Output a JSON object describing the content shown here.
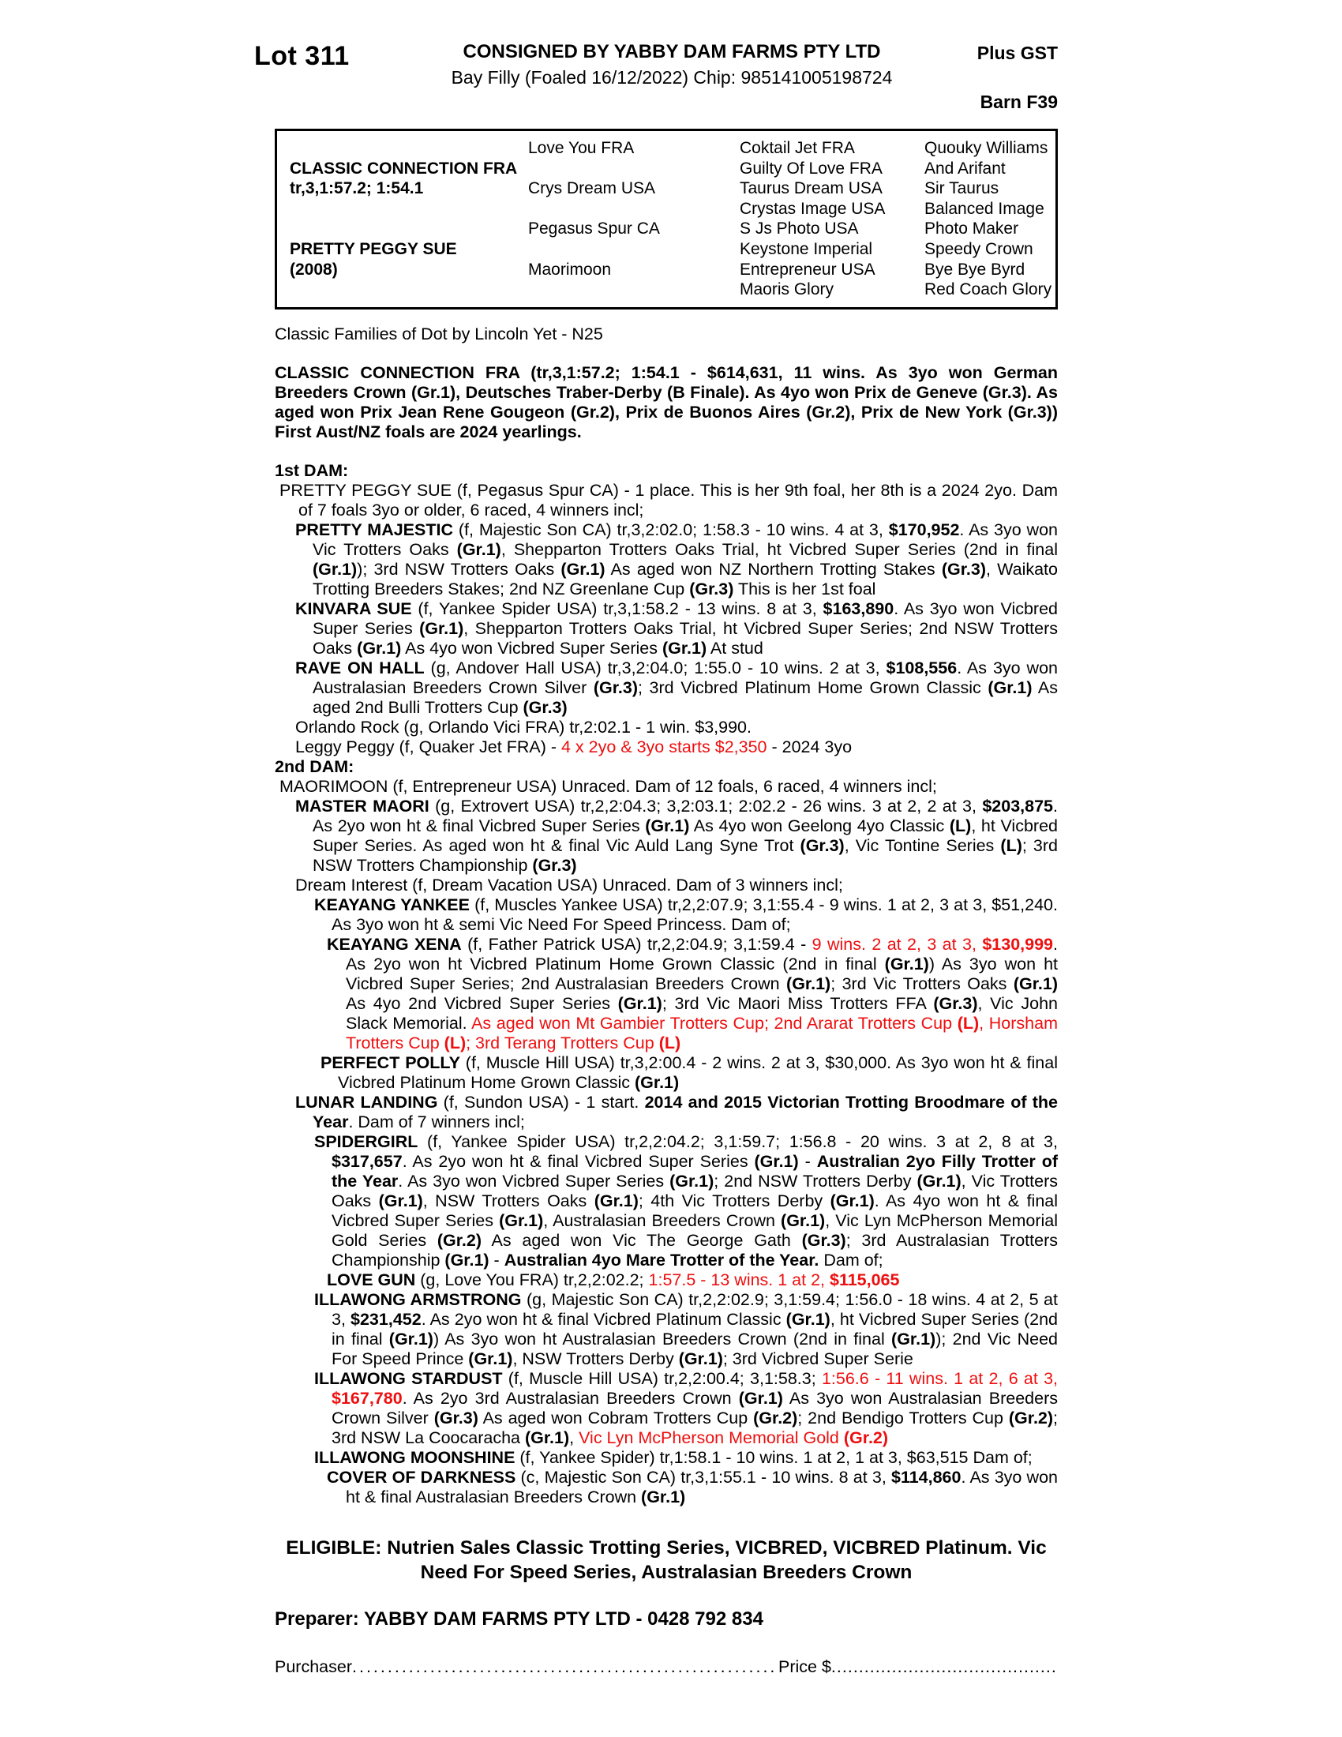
{
  "header": {
    "lot": "Lot 311",
    "consigned": "CONSIGNED BY YABBY DAM FARMS PTY LTD",
    "plus_gst": "Plus GST",
    "bay_filly": "Bay Filly (Foaled 16/12/2022) Chip: 985141005198724",
    "barn": "Barn F39"
  },
  "pedigree": {
    "col1": [
      "",
      "CLASSIC CONNECTION FRA",
      "tr,3,1:57.2; 1:54.1",
      "",
      "",
      "PRETTY PEGGY SUE",
      "(2008)",
      ""
    ],
    "col2": [
      "Love You FRA",
      "",
      "Crys Dream USA",
      "",
      "Pegasus Spur CA",
      "",
      "Maorimoon",
      ""
    ],
    "col3": [
      "Coktail Jet FRA",
      "Guilty Of Love FRA",
      "Taurus Dream USA",
      "Crystas Image USA",
      "S Js Photo USA",
      "Keystone Imperial",
      "Entrepreneur USA",
      "Maoris Glory"
    ],
    "col4": [
      "Quouky Williams",
      "And Arifant",
      "Sir Taurus",
      "Balanced Image",
      "Photo Maker",
      "Speedy Crown",
      "Bye Bye Byrd",
      "Red Coach Glory"
    ]
  },
  "family_line": "Classic Families of Dot by Lincoln Yet - N25",
  "paragraphs": [
    {
      "style": "sire",
      "gap": true,
      "segments": [
        {
          "t": "CLASSIC CONNECTION FRA (tr,3,1:57.2; 1:54.1 - $614,631, 11 wins. As 3yo won German Breeders Crown (Gr.1), Deutsches Traber-Derby (B Finale). As 4yo won Prix de Geneve (Gr.3). As aged won Prix Jean Rene Gougeon (Gr.2), Prix de Buonos Aires (Gr.2), Prix de New York (Gr.3)) First Aust/NZ foals are 2024 yearlings.",
          "b": true
        }
      ]
    },
    {
      "style": "hd",
      "gap": true,
      "segments": [
        {
          "t": "1st DAM:",
          "b": true
        }
      ]
    },
    {
      "style": "dam",
      "segments": [
        {
          "t": "PRETTY PEGGY SUE (f, Pegasus Spur CA) - 1 place. This is her 9th foal, her 8th is a 2024 2yo. Dam of 7 foals 3yo or older, 6 raced, 4 winners incl;"
        }
      ]
    },
    {
      "style": "l1",
      "segments": [
        {
          "t": "PRETTY MAJESTIC",
          "b": true
        },
        {
          "t": " (f, Majestic Son CA) tr,3,2:02.0; 1:58.3 - 10 wins. 4 at 3, "
        },
        {
          "t": "$170,952",
          "b": true
        },
        {
          "t": ". As 3yo won Vic Trotters Oaks "
        },
        {
          "t": "(Gr.1)",
          "b": true
        },
        {
          "t": ", Shepparton Trotters Oaks Trial, ht Vicbred Super Series (2nd in final "
        },
        {
          "t": "(Gr.1)",
          "b": true
        },
        {
          "t": "); 3rd NSW Trotters Oaks "
        },
        {
          "t": "(Gr.1)",
          "b": true
        },
        {
          "t": " As aged won NZ Northern Trotting Stakes "
        },
        {
          "t": "(Gr.3)",
          "b": true
        },
        {
          "t": ", Waikato Trotting Breeders Stakes; 2nd NZ Greenlane Cup "
        },
        {
          "t": "(Gr.3)",
          "b": true
        },
        {
          "t": " This is her 1st foal"
        }
      ]
    },
    {
      "style": "l1",
      "segments": [
        {
          "t": "KINVARA SUE",
          "b": true
        },
        {
          "t": " (f, Yankee Spider USA) tr,3,1:58.2 - 13 wins. 8 at 3, "
        },
        {
          "t": "$163,890",
          "b": true
        },
        {
          "t": ". As 3yo won Vicbred Super Series "
        },
        {
          "t": "(Gr.1)",
          "b": true
        },
        {
          "t": ", Shepparton Trotters Oaks Trial, ht Vicbred Super Series; 2nd NSW Trotters Oaks "
        },
        {
          "t": "(Gr.1)",
          "b": true
        },
        {
          "t": " As 4yo won Vicbred Super Series "
        },
        {
          "t": "(Gr.1)",
          "b": true
        },
        {
          "t": " At stud"
        }
      ]
    },
    {
      "style": "l1",
      "segments": [
        {
          "t": "RAVE ON HALL",
          "b": true
        },
        {
          "t": " (g, Andover Hall USA) tr,3,2:04.0; 1:55.0 - 10 wins. 2 at 3, "
        },
        {
          "t": "$108,556",
          "b": true
        },
        {
          "t": ". As 3yo won Australasian Breeders Crown Silver "
        },
        {
          "t": "(Gr.3)",
          "b": true
        },
        {
          "t": "; 3rd Vicbred Platinum Home Grown Classic "
        },
        {
          "t": "(Gr.1)",
          "b": true
        },
        {
          "t": " As aged 2nd Bulli Trotters Cup "
        },
        {
          "t": "(Gr.3)",
          "b": true
        }
      ]
    },
    {
      "style": "l1",
      "segments": [
        {
          "t": "Orlando Rock (g, Orlando Vici FRA) tr,2:02.1 - 1 win. $3,990."
        }
      ]
    },
    {
      "style": "l1",
      "segments": [
        {
          "t": "Leggy Peggy (f, Quaker Jet FRA) - "
        },
        {
          "t": "4 x 2yo & 3yo starts $2,350",
          "r": true
        },
        {
          "t": " - 2024 3yo"
        }
      ]
    },
    {
      "style": "hd",
      "segments": [
        {
          "t": "2nd DAM:",
          "b": true
        }
      ]
    },
    {
      "style": "dam",
      "segments": [
        {
          "t": "MAORIMOON (f, Entrepreneur USA) Unraced. Dam of 12 foals, 6 raced, 4 winners incl;"
        }
      ]
    },
    {
      "style": "l1",
      "segments": [
        {
          "t": "MASTER MAORI",
          "b": true
        },
        {
          "t": " (g, Extrovert USA) tr,2,2:04.3; 3,2:03.1; 2:02.2 - 26 wins. 3 at 2, 2 at 3, "
        },
        {
          "t": "$203,875",
          "b": true
        },
        {
          "t": ". As 2yo won ht & final Vicbred Super Series "
        },
        {
          "t": "(Gr.1)",
          "b": true
        },
        {
          "t": " As 4yo won Geelong 4yo Classic "
        },
        {
          "t": "(L)",
          "b": true
        },
        {
          "t": ", ht Vicbred Super Series. As aged won ht & final Vic Auld Lang Syne Trot "
        },
        {
          "t": "(Gr.3)",
          "b": true
        },
        {
          "t": ", Vic Tontine Series "
        },
        {
          "t": "(L)",
          "b": true
        },
        {
          "t": "; 3rd NSW Trotters Championship "
        },
        {
          "t": "(Gr.3)",
          "b": true
        }
      ]
    },
    {
      "style": "l1",
      "segments": [
        {
          "t": "Dream Interest (f, Dream Vacation USA) Unraced. Dam of 3 winners incl;"
        }
      ]
    },
    {
      "style": "l2",
      "segments": [
        {
          "t": "KEAYANG YANKEE",
          "b": true
        },
        {
          "t": " (f, Muscles Yankee USA) tr,2,2:07.9; 3,1:55.4 - 9 wins. 1 at 2, 3 at 3, $51,240. As 3yo won ht & semi Vic Need For Speed Princess. Dam of;"
        }
      ]
    },
    {
      "style": "l3",
      "segments": [
        {
          "t": "KEAYANG XENA",
          "b": true
        },
        {
          "t": " (f, Father Patrick USA) tr,2,2:04.9; 3,1:59.4 - "
        },
        {
          "t": "9 wins. 2 at 2, 3 at 3, ",
          "r": true
        },
        {
          "t": "$130,999",
          "r": true,
          "b": true
        },
        {
          "t": ". As 2yo won ht Vicbred Platinum Home Grown Classic (2nd in final "
        },
        {
          "t": "(Gr.1)",
          "b": true
        },
        {
          "t": ") As 3yo won ht Vicbred Super Series; 2nd Australasian Breeders Crown "
        },
        {
          "t": "(Gr.1)",
          "b": true
        },
        {
          "t": "; 3rd Vic Trotters Oaks "
        },
        {
          "t": "(Gr.1)",
          "b": true
        },
        {
          "t": " As 4yo 2nd Vicbred Super Series "
        },
        {
          "t": "(Gr.1)",
          "b": true
        },
        {
          "t": "; 3rd Vic Maori Miss Trotters FFA "
        },
        {
          "t": "(Gr.3)",
          "b": true
        },
        {
          "t": ", Vic John Slack Memorial. "
        },
        {
          "t": "As aged won Mt Gambier Trotters Cup; 2nd Ararat Trotters Cup ",
          "r": true
        },
        {
          "t": "(L)",
          "r": true,
          "b": true
        },
        {
          "t": ", Horsham Trotters Cup ",
          "r": true
        },
        {
          "t": "(L)",
          "r": true,
          "b": true
        },
        {
          "t": "; 3rd Terang Trotters Cup ",
          "r": true
        },
        {
          "t": "(L)",
          "r": true,
          "b": true
        }
      ]
    },
    {
      "style": "l2x",
      "segments": [
        {
          "t": "PERFECT POLLY",
          "b": true
        },
        {
          "t": " (f, Muscle Hill USA) tr,3,2:00.4 - 2 wins. 2 at 3, $30,000. As 3yo won ht & final Vicbred Platinum Home Grown Classic "
        },
        {
          "t": "(Gr.1)",
          "b": true
        }
      ]
    },
    {
      "style": "l1",
      "segments": [
        {
          "t": "LUNAR LANDING",
          "b": true
        },
        {
          "t": " (f, Sundon USA) - 1 start. "
        },
        {
          "t": "2014 and 2015 Victorian Trotting Broodmare of the Year",
          "b": true
        },
        {
          "t": ". Dam of 7 winners incl;"
        }
      ]
    },
    {
      "style": "l2",
      "segments": [
        {
          "t": "SPIDERGIRL",
          "b": true
        },
        {
          "t": " (f, Yankee Spider USA) tr,2,2:04.2; 3,1:59.7; 1:56.8 - 20 wins. 3 at 2, 8 at 3, "
        },
        {
          "t": "$317,657",
          "b": true
        },
        {
          "t": ". As 2yo won ht & final Vicbred Super Series "
        },
        {
          "t": "(Gr.1)",
          "b": true
        },
        {
          "t": " - "
        },
        {
          "t": "Australian 2yo Filly Trotter of the Year",
          "b": true
        },
        {
          "t": ". As 3yo won Vicbred Super Series "
        },
        {
          "t": "(Gr.1)",
          "b": true
        },
        {
          "t": "; 2nd NSW Trotters Derby "
        },
        {
          "t": "(Gr.1)",
          "b": true
        },
        {
          "t": ", Vic Trotters Oaks "
        },
        {
          "t": "(Gr.1)",
          "b": true
        },
        {
          "t": ", NSW Trotters Oaks "
        },
        {
          "t": "(Gr.1)",
          "b": true
        },
        {
          "t": "; 4th Vic Trotters Derby "
        },
        {
          "t": "(Gr.1)",
          "b": true
        },
        {
          "t": ". As 4yo won ht & final Vicbred Super Series "
        },
        {
          "t": "(Gr.1)",
          "b": true
        },
        {
          "t": ", Australasian Breeders Crown "
        },
        {
          "t": "(Gr.1)",
          "b": true
        },
        {
          "t": ", Vic Lyn McPherson Memorial Gold Series "
        },
        {
          "t": "(Gr.2)",
          "b": true
        },
        {
          "t": " As aged won Vic The George Gath "
        },
        {
          "t": "(Gr.3)",
          "b": true
        },
        {
          "t": "; 3rd Australasian Trotters Championship "
        },
        {
          "t": "(Gr.1)",
          "b": true
        },
        {
          "t": " - "
        },
        {
          "t": "Australian 4yo Mare Trotter of the Year.",
          "b": true
        },
        {
          "t": " Dam of;"
        }
      ]
    },
    {
      "style": "l3",
      "segments": [
        {
          "t": "LOVE GUN",
          "b": true
        },
        {
          "t": " (g, Love You FRA) tr,2,2:02.2; "
        },
        {
          "t": "1:57.5 - 13 wins. 1 at 2, ",
          "r": true
        },
        {
          "t": "$115,065",
          "r": true,
          "b": true
        }
      ]
    },
    {
      "style": "l2",
      "segments": [
        {
          "t": "ILLAWONG ARMSTRONG",
          "b": true
        },
        {
          "t": " (g, Majestic Son CA) tr,2,2:02.9; 3,1:59.4; 1:56.0 - 18 wins. 4 at 2, 5 at 3, "
        },
        {
          "t": "$231,452",
          "b": true
        },
        {
          "t": ". As 2yo won ht & final Vicbred Platinum Classic "
        },
        {
          "t": "(Gr.1)",
          "b": true
        },
        {
          "t": ", ht Vicbred Super Series (2nd in final "
        },
        {
          "t": "(Gr.1)",
          "b": true
        },
        {
          "t": ") As 3yo won ht Australasian Breeders Crown (2nd in final "
        },
        {
          "t": "(Gr.1)",
          "b": true
        },
        {
          "t": "); 2nd Vic Need For Speed Prince "
        },
        {
          "t": "(Gr.1)",
          "b": true
        },
        {
          "t": ", NSW Trotters Derby "
        },
        {
          "t": "(Gr.1)",
          "b": true
        },
        {
          "t": "; 3rd Vicbred Super Serie"
        }
      ]
    },
    {
      "style": "l2",
      "segments": [
        {
          "t": "ILLAWONG STARDUST",
          "b": true
        },
        {
          "t": " (f, Muscle Hill USA) tr,2,2:00.4; 3,1:58.3; "
        },
        {
          "t": "1:56.6 - 11 wins. 1 at 2, 6 at 3, ",
          "r": true
        },
        {
          "t": "$167,780",
          "r": true,
          "b": true
        },
        {
          "t": ". As 2yo 3rd Australasian Breeders Crown "
        },
        {
          "t": "(Gr.1)",
          "b": true
        },
        {
          "t": " As 3yo won Australasian Breeders Crown Silver "
        },
        {
          "t": "(Gr.3)",
          "b": true
        },
        {
          "t": " As aged won Cobram Trotters Cup "
        },
        {
          "t": "(Gr.2)",
          "b": true
        },
        {
          "t": "; 2nd Bendigo Trotters Cup "
        },
        {
          "t": "(Gr.2)",
          "b": true
        },
        {
          "t": "; 3rd NSW La Coocaracha "
        },
        {
          "t": "(Gr.1)",
          "b": true
        },
        {
          "t": ", "
        },
        {
          "t": "Vic Lyn McPherson Memorial Gold ",
          "r": true
        },
        {
          "t": "(Gr.2)",
          "r": true,
          "b": true
        }
      ]
    },
    {
      "style": "l2",
      "segments": [
        {
          "t": "ILLAWONG MOONSHINE",
          "b": true
        },
        {
          "t": " (f, Yankee Spider) tr,1:58.1 - 10 wins. 1 at 2, 1 at 3, $63,515 Dam of;"
        }
      ]
    },
    {
      "style": "l3",
      "segments": [
        {
          "t": "COVER OF DARKNESS",
          "b": true
        },
        {
          "t": " (c, Majestic Son CA) tr,3,1:55.1 - 10 wins. 8 at 3, "
        },
        {
          "t": "$114,860",
          "b": true
        },
        {
          "t": ". As 3yo won ht & final Australasian Breeders Crown "
        },
        {
          "t": "(Gr.1)",
          "b": true
        }
      ]
    }
  ],
  "eligible": {
    "line1": "ELIGIBLE: Nutrien Sales Classic Trotting Series, VICBRED, VICBRED Platinum. Vic",
    "line2": "Need For Speed Series, Australasian Breeders Crown"
  },
  "preparer": "Preparer: YABBY DAM FARMS PTY LTD - 0428 792 834",
  "purchaser": {
    "label": "Purchaser",
    "leader1": "........................................................................................................................................................................",
    "price_label": "Price $",
    "leader2": "........................................................................................................................................................................"
  }
}
